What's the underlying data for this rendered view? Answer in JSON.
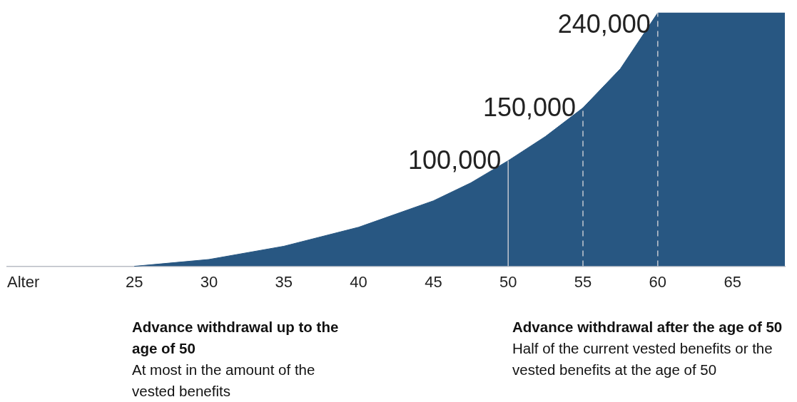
{
  "chart_data": {
    "type": "area",
    "xlabel": "Alter",
    "x": [
      25,
      30,
      35,
      40,
      45,
      47.5,
      50,
      52.5,
      55,
      57.5,
      60,
      68.5
    ],
    "xlim": [
      16.5,
      68.5
    ],
    "xticks": [
      25,
      30,
      35,
      40,
      45,
      50,
      55,
      60,
      65
    ],
    "series": [
      {
        "color": "#285782",
        "values": [
          0,
          6500,
          19000,
          37000,
          62000,
          79000,
          100000,
          123000,
          150000,
          187000,
          240000,
          240000
        ],
        "value_labels": [
          null,
          null,
          null,
          null,
          null,
          null,
          "100,000",
          null,
          "150,000",
          null,
          "240,000",
          null
        ]
      }
    ],
    "ref_lines": [
      {
        "axis": "x",
        "value": 50,
        "color": "#c3c8d0",
        "line_style": "solid"
      },
      {
        "axis": "x",
        "value": 55,
        "color": "#c3c8d0",
        "line_style": "dashed"
      },
      {
        "axis": "x",
        "value": 60,
        "color": "#c3c8d0",
        "line_style": "dashed"
      }
    ],
    "annotations": [
      "Advance withdrawal up to the age of 50",
      "At most in the amount of the vested benefits",
      "Advance withdrawal after the age of 50",
      "Half of the current vested benefits or the vested benefits at the age of 50"
    ],
    "marker": "none",
    "grid": false,
    "legend": false
  }
}
